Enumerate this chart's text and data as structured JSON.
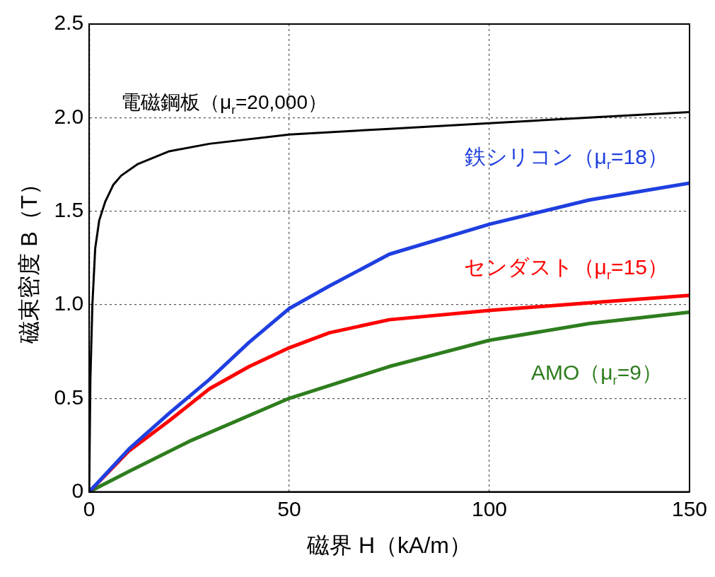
{
  "chart_data": {
    "type": "line",
    "xlabel": "磁界 H（kA/m）",
    "ylabel": "磁束密度 B（T）",
    "xlim": [
      0,
      150
    ],
    "xticks": [
      0,
      50,
      100,
      150
    ],
    "ylim": [
      0,
      2.5
    ],
    "yticks": [
      0,
      {
        "value": 0.5,
        "label": "0.5"
      },
      {
        "value": 1,
        "label": "1.0"
      },
      {
        "value": 1.5,
        "label": "1.5"
      },
      {
        "value": 2,
        "label": "2.0"
      },
      {
        "value": 2.5,
        "label": "2.5"
      }
    ],
    "grid": true,
    "legend": false,
    "marker": "none",
    "line_style": "solid",
    "series": [
      {
        "name": "電磁鋼板（μ$_{r}$=20,000）",
        "color": "#000000",
        "x": [
          0,
          0.3,
          0.8,
          1.5,
          2.5,
          4,
          6,
          8,
          12,
          20,
          30,
          50,
          75,
          100,
          125,
          150
        ],
        "values": [
          0,
          0.6,
          1.0,
          1.3,
          1.45,
          1.55,
          1.64,
          1.69,
          1.75,
          1.82,
          1.86,
          1.91,
          1.94,
          1.97,
          2.0,
          2.03
        ]
      },
      {
        "name": "鉄シリコン（μ$_{r}$=18）",
        "color": "#1f3fe0",
        "x": [
          0,
          10,
          20,
          30,
          40,
          50,
          60,
          75,
          100,
          125,
          150
        ],
        "values": [
          0,
          0.23,
          0.42,
          0.6,
          0.8,
          0.98,
          1.1,
          1.27,
          1.43,
          1.56,
          1.65
        ]
      },
      {
        "name": "センダスト（μ$_{r}$=15）",
        "color": "#ff0000",
        "x": [
          0,
          10,
          20,
          30,
          40,
          50,
          60,
          75,
          100,
          125,
          150
        ],
        "values": [
          0,
          0.22,
          0.38,
          0.55,
          0.67,
          0.77,
          0.85,
          0.92,
          0.97,
          1.01,
          1.05
        ]
      },
      {
        "name": "AMO（μ$_{r}$=9）",
        "color": "#2e7d1e",
        "x": [
          0,
          10,
          25,
          50,
          75,
          100,
          125,
          150
        ],
        "values": [
          0,
          0.11,
          0.27,
          0.5,
          0.67,
          0.81,
          0.9,
          0.96
        ]
      }
    ]
  }
}
